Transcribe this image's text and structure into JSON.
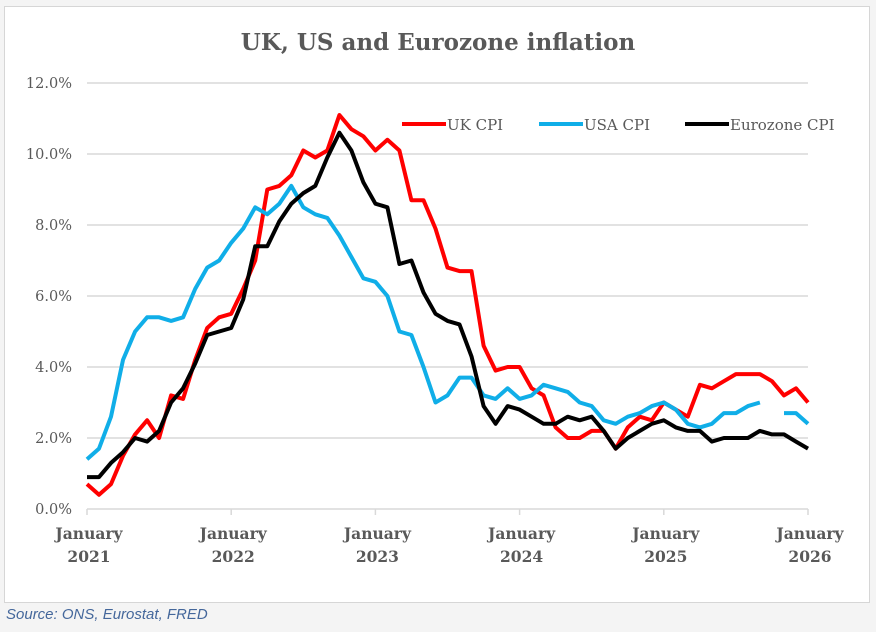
{
  "chart_data": {
    "type": "line",
    "title": "UK, US and Eurozone inflation",
    "xlabel": "",
    "ylabel": "",
    "ylim": [
      0,
      12
    ],
    "yticks": [
      "0.0%",
      "2.0%",
      "4.0%",
      "6.0%",
      "8.0%",
      "10.0%",
      "12.0%"
    ],
    "ytick_values": [
      0,
      2,
      4,
      6,
      8,
      10,
      12
    ],
    "xticks": [
      {
        "line1": "January",
        "line2": "2021",
        "index": 0
      },
      {
        "line1": "January",
        "line2": "2022",
        "index": 12
      },
      {
        "line1": "January",
        "line2": "2023",
        "index": 24
      },
      {
        "line1": "January",
        "line2": "2024",
        "index": 36
      },
      {
        "line1": "January",
        "line2": "2025",
        "index": 48
      },
      {
        "line1": "January",
        "line2": "2026",
        "index": 60
      }
    ],
    "x_start": "January 2021",
    "x_end": "January 2026",
    "x_frequency": "monthly",
    "grid": true,
    "legend_position": "top-right",
    "series": [
      {
        "name": "UK CPI",
        "color": "#ff0000",
        "values": [
          0.7,
          0.4,
          0.7,
          1.5,
          2.1,
          2.5,
          2.0,
          3.2,
          3.1,
          4.2,
          5.1,
          5.4,
          5.5,
          6.2,
          7.0,
          9.0,
          9.1,
          9.4,
          10.1,
          9.9,
          10.1,
          11.1,
          10.7,
          10.5,
          10.1,
          10.4,
          10.1,
          8.7,
          8.7,
          7.9,
          6.8,
          6.7,
          6.7,
          4.6,
          3.9,
          4.0,
          4.0,
          3.4,
          3.2,
          2.3,
          2.0,
          2.0,
          2.2,
          2.2,
          1.7,
          2.3,
          2.6,
          2.5,
          3.0,
          2.8,
          2.6,
          3.5,
          3.4,
          3.6,
          3.8,
          3.8,
          3.8,
          3.6,
          3.2,
          3.4,
          3.0
        ]
      },
      {
        "name": "USA CPI",
        "color": "#10aee8",
        "values": [
          1.4,
          1.7,
          2.6,
          4.2,
          5.0,
          5.4,
          5.4,
          5.3,
          5.4,
          6.2,
          6.8,
          7.0,
          7.5,
          7.9,
          8.5,
          8.3,
          8.6,
          9.1,
          8.5,
          8.3,
          8.2,
          7.7,
          7.1,
          6.5,
          6.4,
          6.0,
          5.0,
          4.9,
          4.0,
          3.0,
          3.2,
          3.7,
          3.7,
          3.2,
          3.1,
          3.4,
          3.1,
          3.2,
          3.5,
          3.4,
          3.3,
          3.0,
          2.9,
          2.5,
          2.4,
          2.6,
          2.7,
          2.9,
          3.0,
          2.8,
          2.4,
          2.3,
          2.4,
          2.7,
          2.7,
          2.9,
          3.0,
          null,
          2.7,
          2.7,
          2.4
        ]
      },
      {
        "name": "Eurozone CPI",
        "color": "#000000",
        "values": [
          0.9,
          0.9,
          1.3,
          1.6,
          2.0,
          1.9,
          2.2,
          3.0,
          3.4,
          4.1,
          4.9,
          5.0,
          5.1,
          5.9,
          7.4,
          7.4,
          8.1,
          8.6,
          8.9,
          9.1,
          9.9,
          10.6,
          10.1,
          9.2,
          8.6,
          8.5,
          6.9,
          7.0,
          6.1,
          5.5,
          5.3,
          5.2,
          4.3,
          2.9,
          2.4,
          2.9,
          2.8,
          2.6,
          2.4,
          2.4,
          2.6,
          2.5,
          2.6,
          2.2,
          1.7,
          2.0,
          2.2,
          2.4,
          2.5,
          2.3,
          2.2,
          2.2,
          1.9,
          2.0,
          2.0,
          2.0,
          2.2,
          2.1,
          2.1,
          1.9,
          1.7
        ]
      }
    ]
  },
  "source": "Source: ONS, Eurostat, FRED"
}
